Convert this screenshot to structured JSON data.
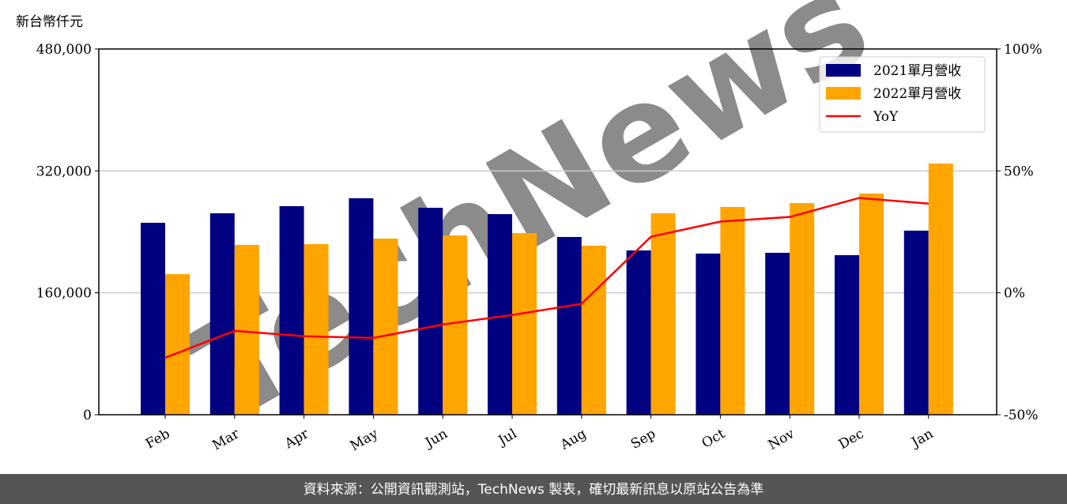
{
  "chart_data": {
    "type": "bar",
    "y_label": "新台幣仟元",
    "watermark": "TechNews",
    "footer": "資料來源：公開資訊觀測站，TechNews 製表，確切最新訊息以原站公告為準",
    "categories": [
      "Feb",
      "Mar",
      "Apr",
      "May",
      "Jun",
      "Jul",
      "Aug",
      "Sep",
      "Oct",
      "Nov",
      "Dec",
      "Jan"
    ],
    "series": [
      {
        "name": "2021單月營收",
        "color": "#000080",
        "values": [
          251900,
          264400,
          273700,
          284100,
          271600,
          263300,
          233300,
          215600,
          211500,
          212500,
          209400,
          241600
        ]
      },
      {
        "name": "2022單月營收",
        "color": "#ffa500",
        "values": [
          184500,
          222900,
          223900,
          231200,
          235300,
          238400,
          221900,
          264400,
          272700,
          277800,
          290300,
          329700
        ]
      },
      {
        "name": "YoY",
        "type": "line",
        "axis": "y2",
        "color": "#ff0000",
        "values": [
          -26.6,
          -15.6,
          -17.8,
          -18.5,
          -13,
          -9.1,
          -4.5,
          23,
          29.2,
          31.1,
          38.9,
          36.6
        ]
      }
    ],
    "ylim": [
      0,
      480000
    ],
    "yticks": [
      0,
      {
        "value": 160000,
        "label": "160,000"
      },
      {
        "value": 320000,
        "label": "320,000"
      },
      {
        "value": 480000,
        "label": "480,000"
      }
    ],
    "y2lim": [
      -50,
      100
    ],
    "y2ticks": [
      {
        "value": -50,
        "label": "-50%"
      },
      {
        "value": 0,
        "label": "0%"
      },
      {
        "value": 50,
        "label": "50%"
      },
      {
        "value": 100,
        "label": "100%"
      }
    ],
    "grid": true,
    "legend": "upper right"
  }
}
